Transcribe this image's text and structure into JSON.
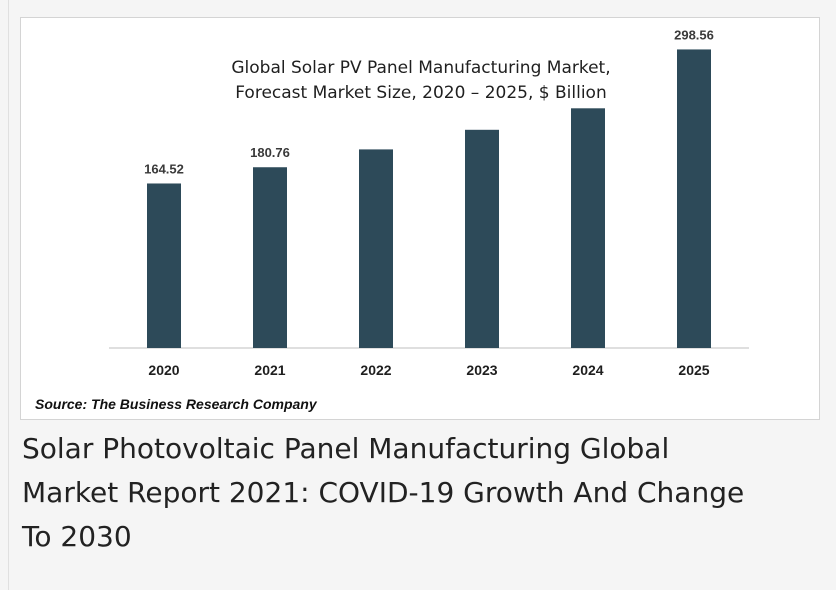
{
  "chart_data": {
    "type": "bar",
    "title": [
      "Global Solar PV Panel Manufacturing Market,",
      "Forecast Market Size, 2020 – 2025, $ Billion"
    ],
    "categories": [
      "2020",
      "2021",
      "2022",
      "2023",
      "2024",
      "2025"
    ],
    "values": [
      164.52,
      180.76,
      198.6,
      218.2,
      239.7,
      298.56
    ],
    "data_labels": [
      "164.52",
      "180.76",
      "",
      "",
      "",
      "298.56"
    ],
    "ylim": [
      0,
      320
    ],
    "grid": false,
    "legend": "none",
    "bar_color": "#2d4a59"
  },
  "source": "Source: The Business Research Company",
  "caption": [
    "Solar Photovoltaic Panel Manufacturing Global",
    "Market Report 2021: COVID-19 Growth And Change",
    "To 2030"
  ]
}
